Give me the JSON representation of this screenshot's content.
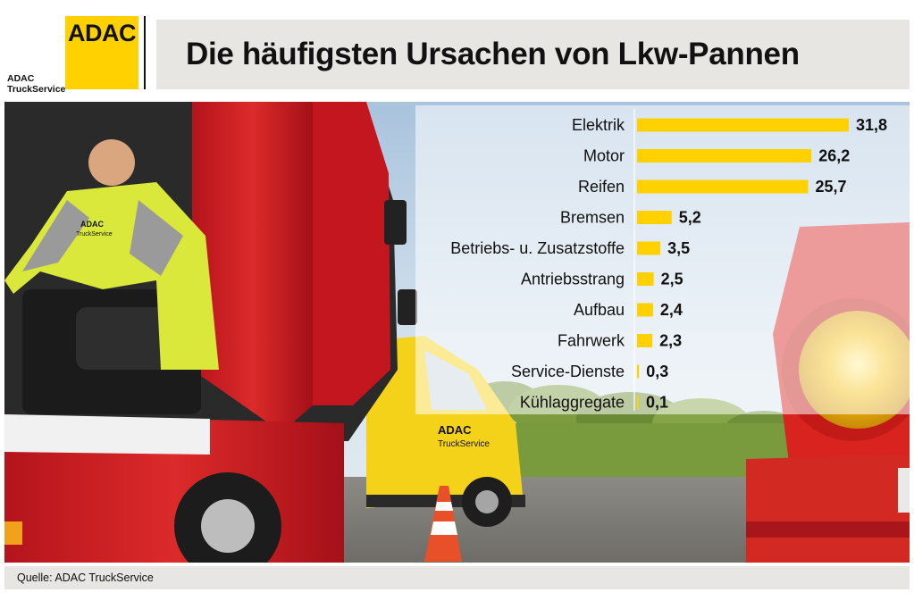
{
  "header": {
    "logo_text": "ADAC",
    "brand_line1": "ADAC",
    "brand_line2": "TruckService",
    "title": "Die häufigsten Ursachen von Lkw-Pannen"
  },
  "footer": {
    "source": "Quelle:  ADAC TruckService"
  },
  "photo": {
    "van_line1": "ADAC",
    "van_line2": "TruckService",
    "jacket_line1": "ADAC",
    "jacket_line2": "TruckService"
  },
  "chart_data": {
    "type": "bar",
    "orientation": "horizontal",
    "categories": [
      "Elektrik",
      "Motor",
      "Reifen",
      "Bremsen",
      "Betriebs- u. Zusatzstoffe",
      "Antriebsstrang",
      "Aufbau",
      "Fahrwerk",
      "Service-Dienste",
      "Kühlaggregate"
    ],
    "values": [
      31.8,
      26.2,
      25.7,
      5.2,
      3.5,
      2.5,
      2.4,
      2.3,
      0.3,
      0.1
    ],
    "value_labels": [
      "31,8",
      "26,2",
      "25,7",
      "5,2",
      "3,5",
      "2,5",
      "2,4",
      "2,3",
      "0,3",
      "0,1"
    ],
    "xlim": [
      0,
      31.8
    ],
    "bar_color": "#FFD100",
    "grid": false,
    "legend": "none"
  },
  "colors": {
    "accent": "#FFD100",
    "panel": "#e8e6e3",
    "text": "#111111"
  }
}
